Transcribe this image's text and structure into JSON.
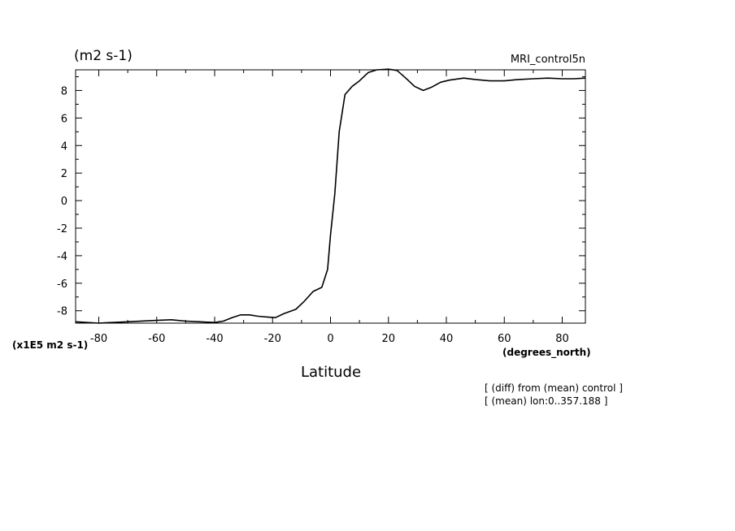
{
  "header": {
    "units": "(m2 s-1)",
    "run_name": "MRI_control5n"
  },
  "labels": {
    "y_scale": "(x1E5 m2 s-1)",
    "x_units": "(degrees_north)",
    "x_title": "Latitude"
  },
  "notes": [
    "[ (diff) from (mean) control ]",
    "[ (mean) lon:0..357.188 ]"
  ],
  "chart_data": {
    "type": "line",
    "title": "(m2 s-1)",
    "xlabel": "Latitude",
    "ylabel": "(x1E5 m2 s-1)",
    "xlim": [
      -88,
      88
    ],
    "ylim": [
      -8.9,
      9.5
    ],
    "xticks": [
      -80,
      -60,
      -40,
      -20,
      0,
      20,
      40,
      60,
      80
    ],
    "xtick_labels": [
      "-80",
      "-60",
      "-40",
      "-20",
      "0",
      "20",
      "40",
      "60",
      "80"
    ],
    "yticks": [
      -8,
      -6,
      -4,
      -2,
      0,
      2,
      4,
      6,
      8
    ],
    "ytick_labels": [
      "-8",
      "-6",
      "-4",
      "-2",
      "0",
      "2",
      "4",
      "6",
      "8"
    ],
    "grid": false,
    "series": [
      {
        "x": [
          -88,
          -80,
          -70,
          -60,
          -55,
          -50,
          -45,
          -40,
          -37,
          -34,
          -31,
          -28,
          -25,
          -22,
          -19,
          -16,
          -12,
          -9,
          -6,
          -3,
          -1,
          0,
          1.5,
          3,
          5,
          7.5,
          10,
          13,
          16,
          20,
          23,
          26,
          29,
          32,
          35,
          38,
          41,
          46,
          50,
          55,
          60,
          65,
          70,
          75,
          80,
          84,
          88
        ],
        "y": [
          -8.8,
          -8.9,
          -8.8,
          -8.7,
          -8.65,
          -8.75,
          -8.8,
          -8.85,
          -8.75,
          -8.5,
          -8.3,
          -8.3,
          -8.4,
          -8.45,
          -8.5,
          -8.2,
          -7.9,
          -7.3,
          -6.6,
          -6.3,
          -5.0,
          -2.5,
          0.5,
          5.0,
          7.7,
          8.3,
          8.7,
          9.3,
          9.5,
          9.55,
          9.45,
          8.9,
          8.3,
          8.0,
          8.25,
          8.6,
          8.75,
          8.9,
          8.8,
          8.7,
          8.7,
          8.8,
          8.85,
          8.9,
          8.85,
          8.85,
          8.9
        ]
      }
    ]
  }
}
